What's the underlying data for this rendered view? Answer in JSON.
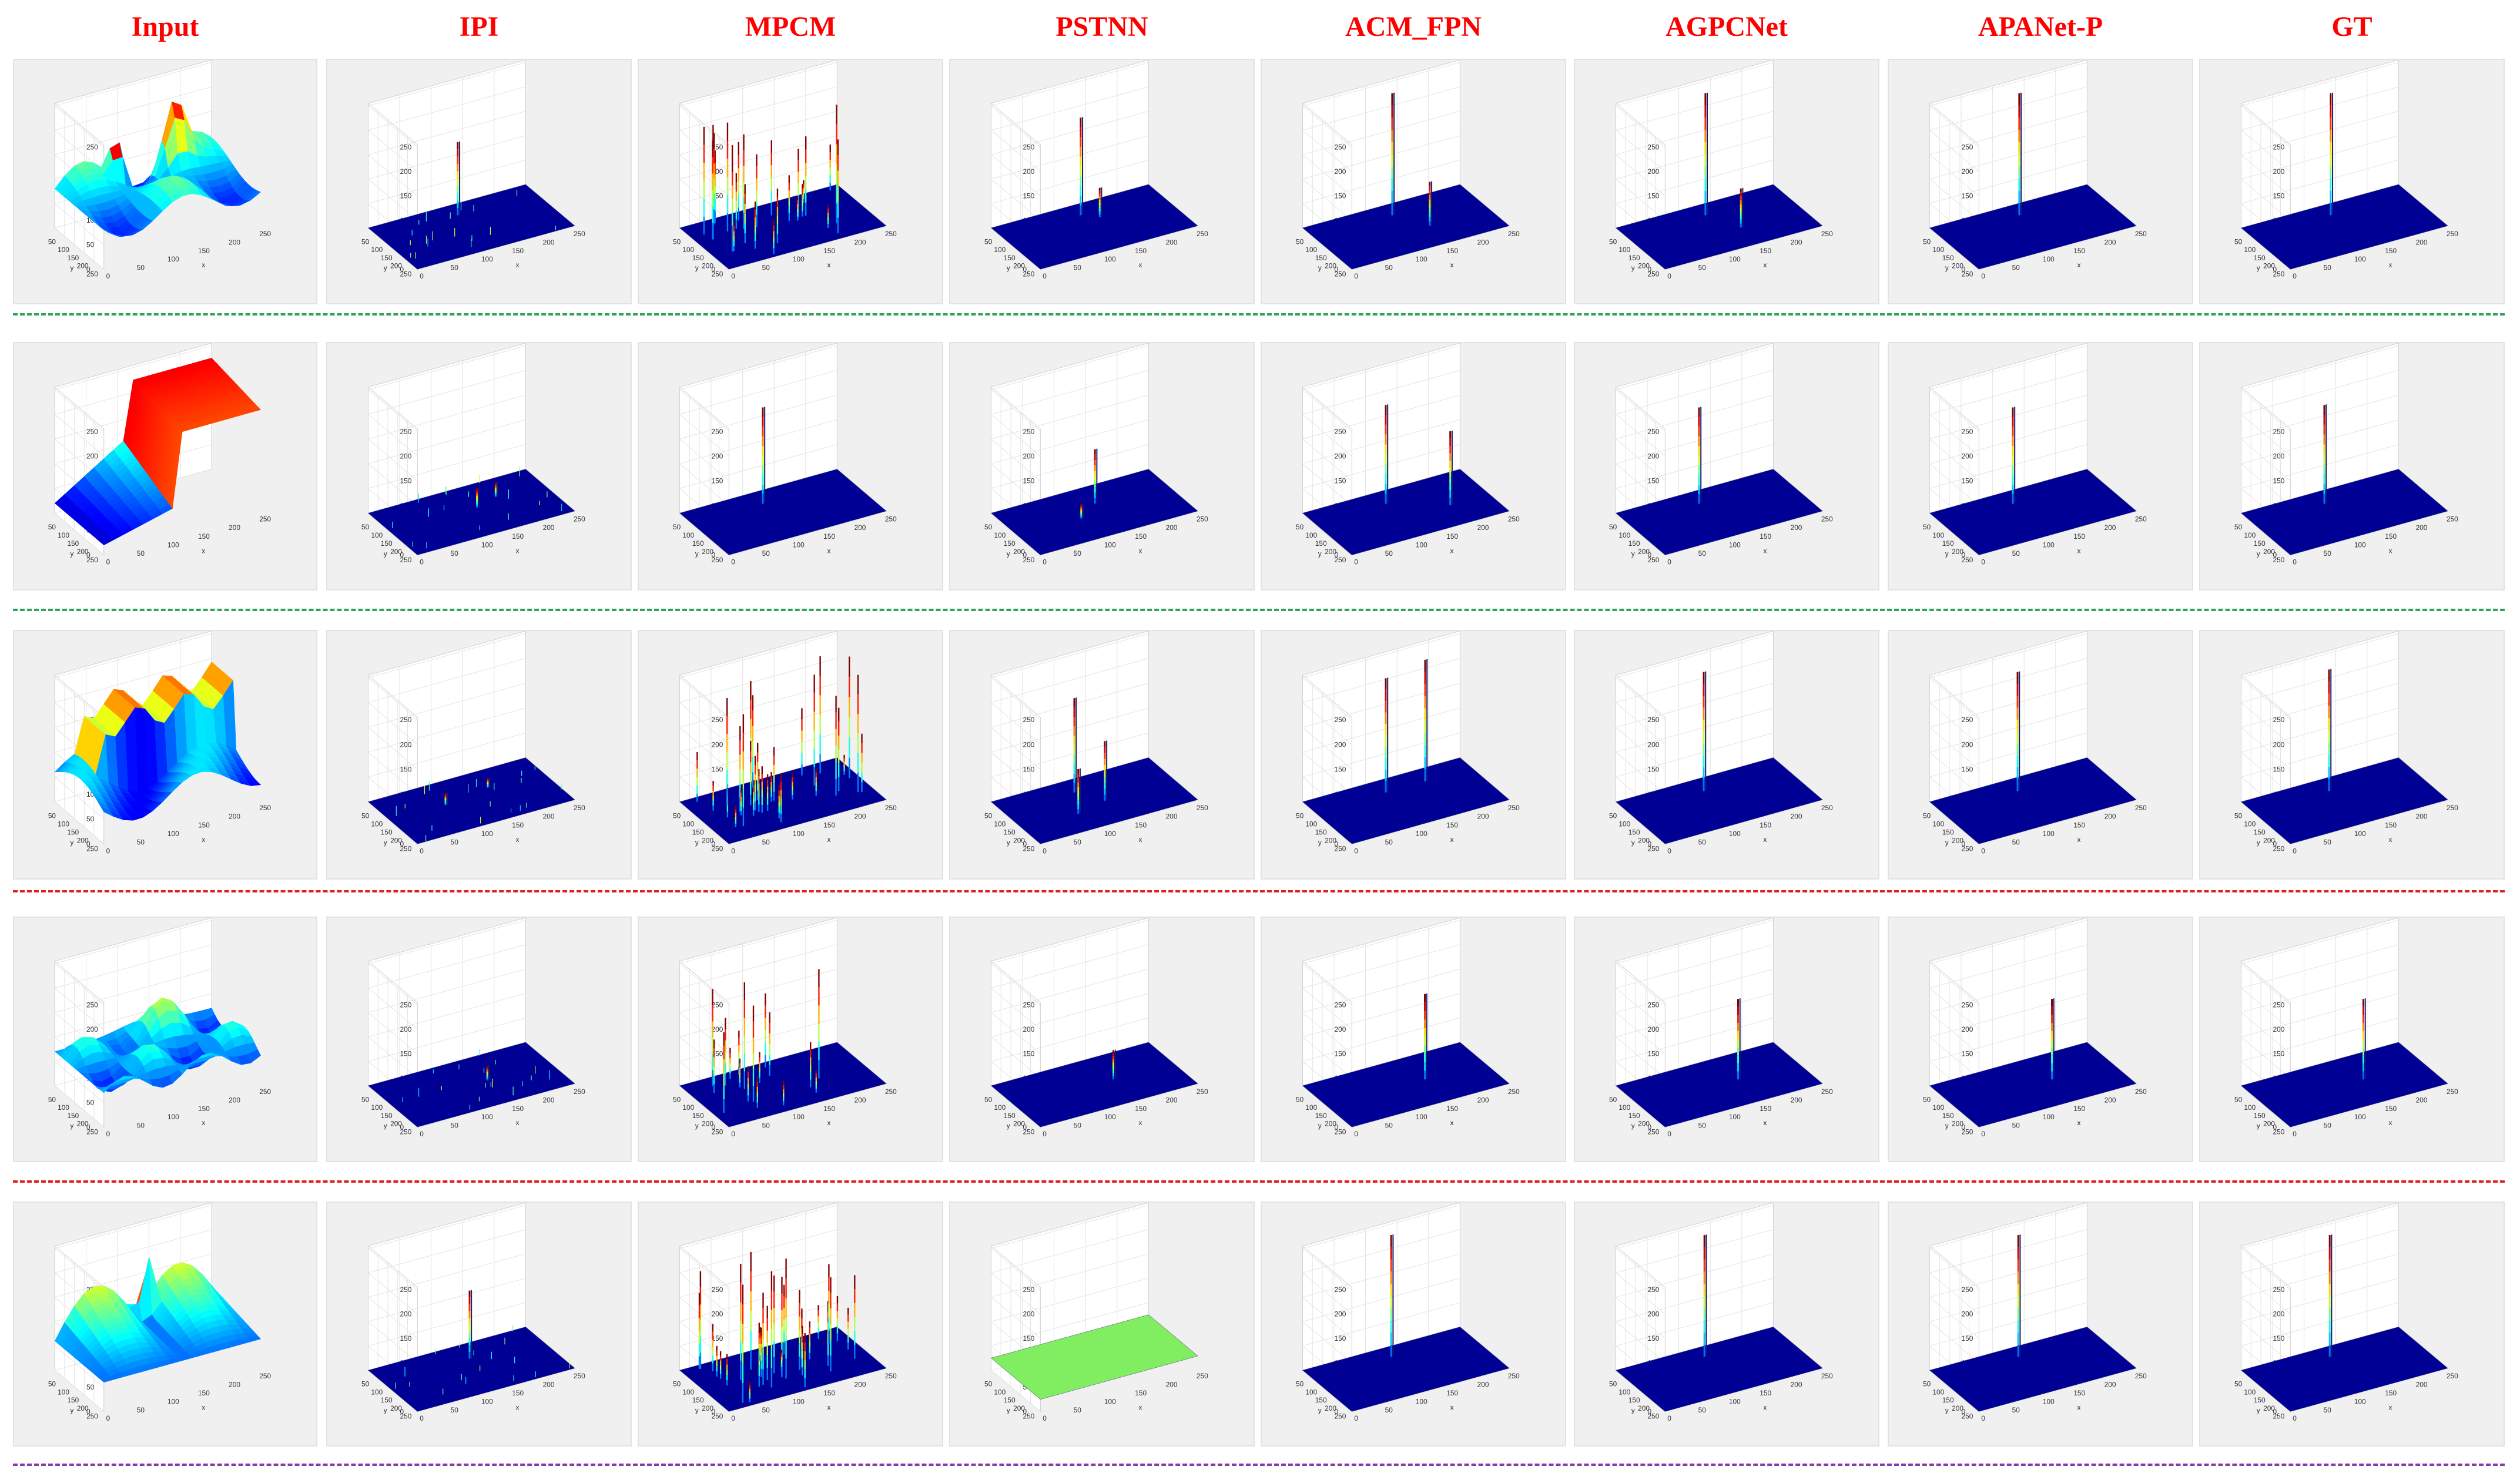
{
  "figure": {
    "title_color": "#ff0000",
    "methods": [
      "Input",
      "IPI",
      "MPCM",
      "PSTNN",
      "ACM_FPN",
      "AGPCNet",
      "APANet-P",
      "GT"
    ],
    "separator_colors": [
      "#2aa55a",
      "#2aa55a",
      "#e02020",
      "#e02020",
      "#8a3aa8"
    ]
  },
  "chart_data": {
    "type": "surface",
    "description_axes": {
      "x_label": "x",
      "y_label": "y",
      "z_ticks": [
        0,
        50,
        100,
        150,
        200,
        250
      ],
      "x_ticks": [
        0,
        50,
        100,
        150,
        200,
        250
      ],
      "y_ticks": [
        50,
        100,
        150,
        200,
        250
      ],
      "xlim": [
        0,
        256
      ],
      "ylim": [
        0,
        256
      ],
      "zlim": [
        0,
        255
      ]
    },
    "colormap": "jet",
    "rows": [
      {
        "row": 1,
        "panels": [
          {
            "method": "Input",
            "kind": "input",
            "variant": 1
          },
          {
            "method": "IPI",
            "kind": "peaks",
            "peaks": [
              [
                0.5,
                0.22,
                150
              ]
            ],
            "noise": 0.3
          },
          {
            "method": "MPCM",
            "kind": "clutter",
            "count": 28,
            "seed": 11
          },
          {
            "method": "PSTNN",
            "kind": "peaks",
            "peaks": [
              [
                0.5,
                0.22,
                200
              ],
              [
                0.58,
                0.35,
                60
              ]
            ]
          },
          {
            "method": "ACM_FPN",
            "kind": "peaks",
            "peaks": [
              [
                0.5,
                0.22,
                250
              ],
              [
                0.62,
                0.6,
                90
              ]
            ]
          },
          {
            "method": "AGPCNet",
            "kind": "peaks",
            "peaks": [
              [
                0.5,
                0.22,
                250
              ],
              [
                0.6,
                0.62,
                80
              ]
            ]
          },
          {
            "method": "APANet-P",
            "kind": "peaks",
            "peaks": [
              [
                0.5,
                0.22,
                250
              ]
            ]
          },
          {
            "method": "GT",
            "kind": "peaks",
            "peaks": [
              [
                0.5,
                0.22,
                250
              ]
            ]
          }
        ]
      },
      {
        "row": 2,
        "panels": [
          {
            "method": "Input",
            "kind": "input",
            "variant": 2
          },
          {
            "method": "IPI",
            "kind": "peaks",
            "peaks": [
              [
                0.55,
                0.45,
                40
              ],
              [
                0.7,
                0.35,
                30
              ]
            ],
            "noise": 0.3
          },
          {
            "method": "MPCM",
            "kind": "peaks",
            "peaks": [
              [
                0.45,
                0.25,
                195
              ]
            ]
          },
          {
            "method": "PSTNN",
            "kind": "peaks",
            "peaks": [
              [
                0.55,
                0.35,
                110
              ],
              [
                0.4,
                0.55,
                30
              ]
            ]
          },
          {
            "method": "ACM_FPN",
            "kind": "peaks",
            "peaks": [
              [
                0.45,
                0.25,
                200
              ],
              [
                0.75,
                0.6,
                150
              ]
            ]
          },
          {
            "method": "AGPCNet",
            "kind": "peaks",
            "peaks": [
              [
                0.45,
                0.25,
                195
              ]
            ]
          },
          {
            "method": "APANet-P",
            "kind": "peaks",
            "peaks": [
              [
                0.45,
                0.25,
                195
              ]
            ]
          },
          {
            "method": "GT",
            "kind": "peaks",
            "peaks": [
              [
                0.45,
                0.25,
                200
              ]
            ]
          }
        ]
      },
      {
        "row": 3,
        "panels": [
          {
            "method": "Input",
            "kind": "input",
            "variant": 3
          },
          {
            "method": "IPI",
            "kind": "peaks",
            "peaks": [
              [
                0.35,
                0.45,
                25
              ],
              [
                0.65,
                0.35,
                20
              ]
            ],
            "noise": 0.3
          },
          {
            "method": "MPCM",
            "kind": "clutter",
            "count": 32,
            "seed": 37
          },
          {
            "method": "PSTNN",
            "kind": "peaks",
            "peaks": [
              [
                0.45,
                0.25,
                190
              ],
              [
                0.55,
                0.55,
                120
              ],
              [
                0.35,
                0.65,
                90
              ]
            ]
          },
          {
            "method": "ACM_FPN",
            "kind": "peaks",
            "peaks": [
              [
                0.45,
                0.25,
                230
              ],
              [
                0.7,
                0.25,
                245
              ]
            ]
          },
          {
            "method": "AGPCNet",
            "kind": "peaks",
            "peaks": [
              [
                0.48,
                0.25,
                240
              ]
            ]
          },
          {
            "method": "APANet-P",
            "kind": "peaks",
            "peaks": [
              [
                0.48,
                0.25,
                240
              ]
            ]
          },
          {
            "method": "GT",
            "kind": "peaks",
            "peaks": [
              [
                0.48,
                0.25,
                245
              ]
            ]
          }
        ]
      },
      {
        "row": 4,
        "panels": [
          {
            "method": "Input",
            "kind": "input",
            "variant": 4
          },
          {
            "method": "IPI",
            "kind": "peaks",
            "peaks": [
              [
                0.6,
                0.5,
                30
              ]
            ],
            "noise": 0.2
          },
          {
            "method": "MPCM",
            "kind": "clutter",
            "count": 18,
            "seed": 53
          },
          {
            "method": "PSTNN",
            "kind": "peaks",
            "peaks": [
              [
                0.62,
                0.5,
                60
              ]
            ]
          },
          {
            "method": "ACM_FPN",
            "kind": "peaks",
            "peaks": [
              [
                0.62,
                0.5,
                175
              ]
            ]
          },
          {
            "method": "AGPCNet",
            "kind": "peaks",
            "peaks": [
              [
                0.62,
                0.5,
                165
              ]
            ]
          },
          {
            "method": "APANet-P",
            "kind": "peaks",
            "peaks": [
              [
                0.62,
                0.5,
                165
              ]
            ]
          },
          {
            "method": "GT",
            "kind": "peaks",
            "peaks": [
              [
                0.62,
                0.5,
                165
              ]
            ]
          }
        ]
      },
      {
        "row": 5,
        "panels": [
          {
            "method": "Input",
            "kind": "input",
            "variant": 5
          },
          {
            "method": "IPI",
            "kind": "peaks",
            "peaks": [
              [
                0.55,
                0.3,
                140
              ]
            ],
            "noise": 0.3
          },
          {
            "method": "MPCM",
            "kind": "clutter",
            "count": 34,
            "seed": 71
          },
          {
            "method": "PSTNN",
            "kind": "flat",
            "plane_color": "#80ee60",
            "plane_z": 25
          },
          {
            "method": "ACM_FPN",
            "kind": "peaks",
            "peaks": [
              [
                0.5,
                0.2,
                250
              ]
            ]
          },
          {
            "method": "AGPCNet",
            "kind": "peaks",
            "peaks": [
              [
                0.5,
                0.2,
                250
              ]
            ]
          },
          {
            "method": "APANet-P",
            "kind": "peaks",
            "peaks": [
              [
                0.5,
                0.2,
                250
              ]
            ]
          },
          {
            "method": "GT",
            "kind": "peaks",
            "peaks": [
              [
                0.5,
                0.2,
                250
              ]
            ]
          }
        ]
      }
    ]
  }
}
